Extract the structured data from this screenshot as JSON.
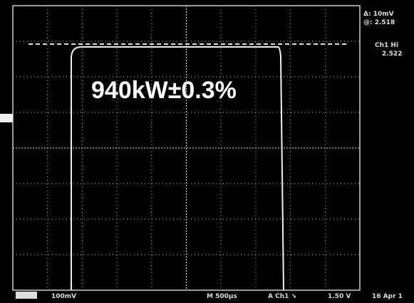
{
  "readouts": {
    "delta": "Δ: 10mV",
    "at": "@: 2.518",
    "channel": "Ch1 Hi",
    "channel_value": "2.522"
  },
  "annotation": "940kW±0.3%",
  "status_bar": {
    "ch_scale": "100mV",
    "timebase": "M 500µs",
    "trigger": "A Ch1 ↘",
    "trigger_level": "1.50 V",
    "date": "16 Apr 1"
  }
}
